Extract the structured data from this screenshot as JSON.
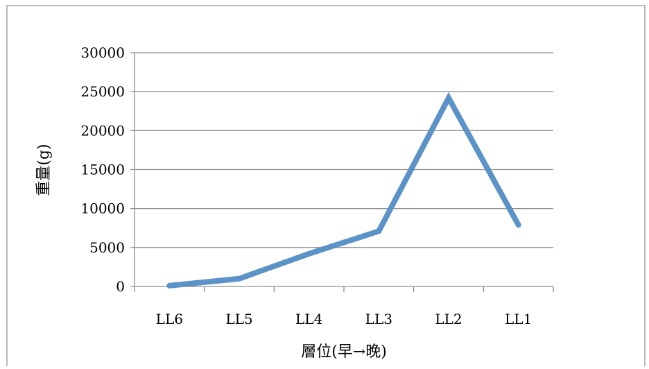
{
  "chart_data": {
    "type": "line",
    "title": "",
    "xlabel": "層位(早→晚)",
    "ylabel": "重量(g)",
    "categories": [
      "LL6",
      "LL5",
      "LL4",
      "LL3",
      "LL2",
      "LL1"
    ],
    "series": [
      {
        "values": [
          100,
          1000,
          4200,
          7100,
          24200,
          7900
        ]
      }
    ],
    "ylim": [
      0,
      30000
    ],
    "yticks": [
      "0",
      "5000",
      "10000",
      "15000",
      "20000",
      "25000",
      "30000"
    ],
    "grid": true,
    "legend": "none",
    "line_color": "#5b93c8",
    "grid_color": "#8c8c8c"
  }
}
